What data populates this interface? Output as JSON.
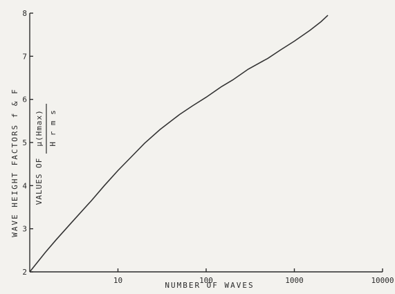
{
  "chart_data": {
    "type": "line",
    "xlabel": "NUMBER OF WAVES",
    "ylabel": "WAVE HEIGHT FACTORS f & F",
    "ylabel2_prefix": "VALUES OF",
    "ylabel2_numerator": "μ(Hmax)",
    "ylabel2_denominator": "H r m s",
    "x_scale": "log",
    "xlim": [
      1,
      10000
    ],
    "ylim": [
      2,
      8
    ],
    "x_ticks": [
      10,
      100,
      1000,
      10000
    ],
    "x_tick_labels": [
      "10",
      "100",
      "1000",
      "10000"
    ],
    "y_ticks": [
      2,
      3,
      4,
      5,
      6,
      7,
      8
    ],
    "y_tick_labels": [
      "2",
      "3",
      "4",
      "5",
      "6",
      "7",
      "8"
    ],
    "grid": false,
    "series": [
      {
        "x": [
          1,
          1.5,
          2,
          3,
          5,
          7,
          10,
          15,
          20,
          30,
          50,
          70,
          100,
          150,
          200,
          300,
          500,
          700,
          1000,
          1500,
          2000,
          2400
        ],
        "y": [
          2.0,
          2.45,
          2.75,
          3.15,
          3.65,
          4.0,
          4.35,
          4.72,
          4.98,
          5.3,
          5.65,
          5.85,
          6.05,
          6.3,
          6.45,
          6.7,
          6.95,
          7.15,
          7.35,
          7.6,
          7.8,
          7.95
        ]
      }
    ]
  }
}
